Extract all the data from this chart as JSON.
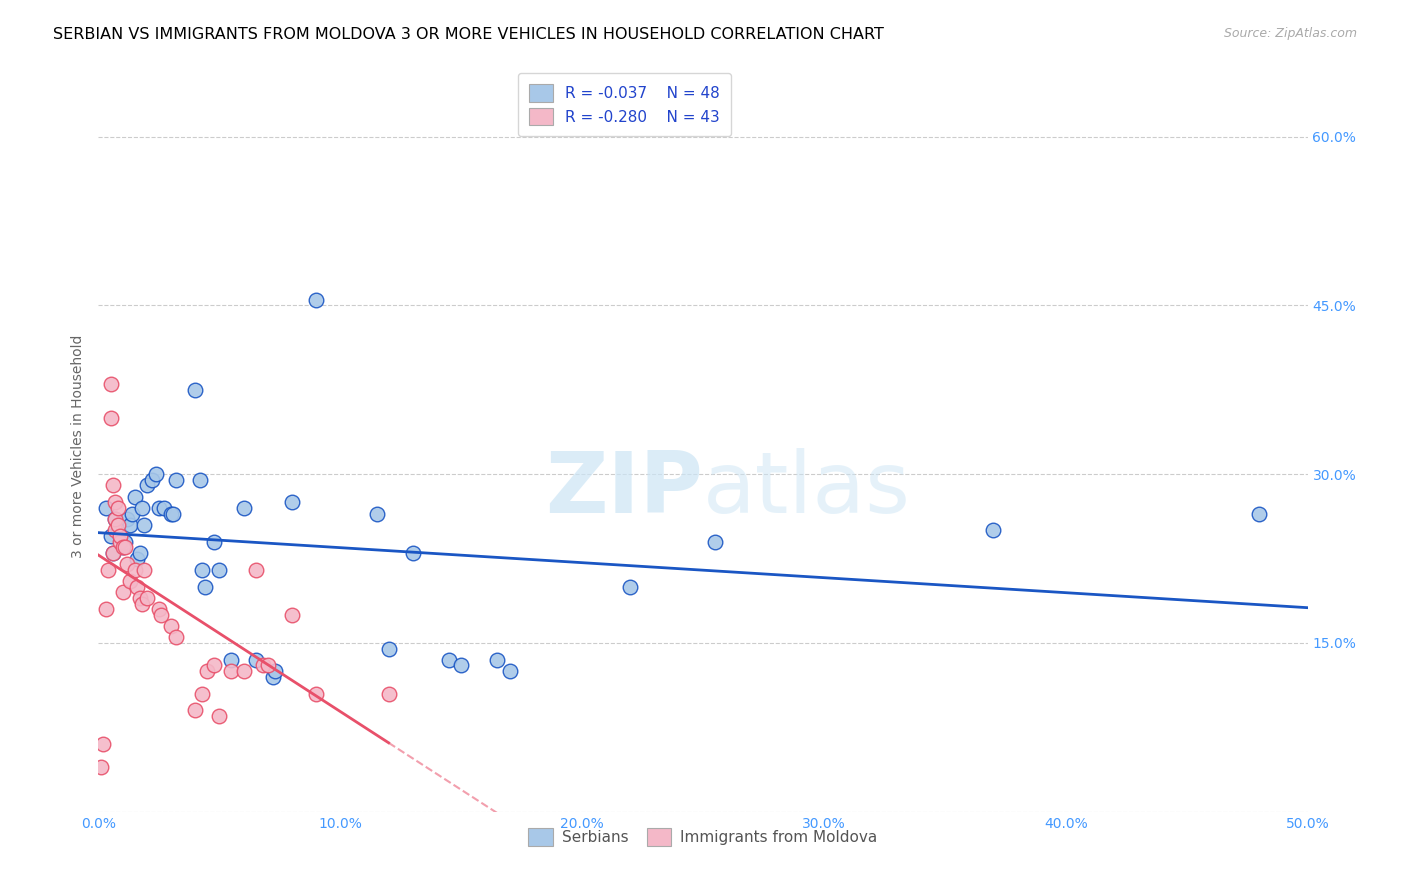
{
  "title": "SERBIAN VS IMMIGRANTS FROM MOLDOVA 3 OR MORE VEHICLES IN HOUSEHOLD CORRELATION CHART",
  "source": "Source: ZipAtlas.com",
  "ylabel": "3 or more Vehicles in Household",
  "xlim": [
    0.0,
    50.0
  ],
  "ylim": [
    0.0,
    65.0
  ],
  "xticks": [
    0.0,
    10.0,
    20.0,
    30.0,
    40.0,
    50.0
  ],
  "xtick_labels": [
    "0.0%",
    "10.0%",
    "20.0%",
    "30.0%",
    "40.0%",
    "50.0%"
  ],
  "yticks": [
    0.0,
    15.0,
    30.0,
    45.0,
    60.0
  ],
  "ytick_labels": [
    "",
    "15.0%",
    "30.0%",
    "45.0%",
    "60.0%"
  ],
  "legend_labels": [
    "Serbians",
    "Immigrants from Moldova"
  ],
  "blue_R": -0.037,
  "blue_N": 48,
  "pink_R": -0.28,
  "pink_N": 43,
  "blue_color": "#a8c8e8",
  "pink_color": "#f4b8c8",
  "blue_line_color": "#1a56c4",
  "pink_line_color": "#e8506a",
  "blue_scatter": [
    [
      0.3,
      27.0
    ],
    [
      0.5,
      24.5
    ],
    [
      0.6,
      23.0
    ],
    [
      0.7,
      26.0
    ],
    [
      0.8,
      25.0
    ],
    [
      0.9,
      24.5
    ],
    [
      1.0,
      23.5
    ],
    [
      1.1,
      24.0
    ],
    [
      1.2,
      26.0
    ],
    [
      1.3,
      25.5
    ],
    [
      1.4,
      26.5
    ],
    [
      1.5,
      28.0
    ],
    [
      1.6,
      22.5
    ],
    [
      1.7,
      23.0
    ],
    [
      1.8,
      27.0
    ],
    [
      1.9,
      25.5
    ],
    [
      2.0,
      29.0
    ],
    [
      2.2,
      29.5
    ],
    [
      2.4,
      30.0
    ],
    [
      2.5,
      27.0
    ],
    [
      2.7,
      27.0
    ],
    [
      3.0,
      26.5
    ],
    [
      3.1,
      26.5
    ],
    [
      3.2,
      29.5
    ],
    [
      4.0,
      37.5
    ],
    [
      4.2,
      29.5
    ],
    [
      4.3,
      21.5
    ],
    [
      4.4,
      20.0
    ],
    [
      4.8,
      24.0
    ],
    [
      5.0,
      21.5
    ],
    [
      5.5,
      13.5
    ],
    [
      6.0,
      27.0
    ],
    [
      6.5,
      13.5
    ],
    [
      7.2,
      12.0
    ],
    [
      7.3,
      12.5
    ],
    [
      8.0,
      27.5
    ],
    [
      9.0,
      45.5
    ],
    [
      11.5,
      26.5
    ],
    [
      12.0,
      14.5
    ],
    [
      13.0,
      23.0
    ],
    [
      14.5,
      13.5
    ],
    [
      15.0,
      13.0
    ],
    [
      16.5,
      13.5
    ],
    [
      17.0,
      12.5
    ],
    [
      22.0,
      20.0
    ],
    [
      25.5,
      24.0
    ],
    [
      37.0,
      25.0
    ],
    [
      48.0,
      26.5
    ]
  ],
  "pink_scatter": [
    [
      0.1,
      4.0
    ],
    [
      0.2,
      6.0
    ],
    [
      0.3,
      18.0
    ],
    [
      0.4,
      21.5
    ],
    [
      0.5,
      35.0
    ],
    [
      0.5,
      38.0
    ],
    [
      0.6,
      23.0
    ],
    [
      0.6,
      29.0
    ],
    [
      0.7,
      25.0
    ],
    [
      0.7,
      26.0
    ],
    [
      0.7,
      27.5
    ],
    [
      0.8,
      25.5
    ],
    [
      0.8,
      27.0
    ],
    [
      0.9,
      24.0
    ],
    [
      0.9,
      24.5
    ],
    [
      1.0,
      23.5
    ],
    [
      1.0,
      19.5
    ],
    [
      1.1,
      23.5
    ],
    [
      1.2,
      22.0
    ],
    [
      1.3,
      20.5
    ],
    [
      1.5,
      21.5
    ],
    [
      1.6,
      20.0
    ],
    [
      1.7,
      19.0
    ],
    [
      1.8,
      18.5
    ],
    [
      1.9,
      21.5
    ],
    [
      2.0,
      19.0
    ],
    [
      2.5,
      18.0
    ],
    [
      2.6,
      17.5
    ],
    [
      3.0,
      16.5
    ],
    [
      3.2,
      15.5
    ],
    [
      4.0,
      9.0
    ],
    [
      4.3,
      10.5
    ],
    [
      4.5,
      12.5
    ],
    [
      4.8,
      13.0
    ],
    [
      5.0,
      8.5
    ],
    [
      5.5,
      12.5
    ],
    [
      6.0,
      12.5
    ],
    [
      6.5,
      21.5
    ],
    [
      6.8,
      13.0
    ],
    [
      7.0,
      13.0
    ],
    [
      8.0,
      17.5
    ],
    [
      9.0,
      10.5
    ],
    [
      12.0,
      10.5
    ]
  ],
  "watermark_zip": "ZIP",
  "watermark_atlas": "atlas",
  "background_color": "#ffffff",
  "grid_color": "#cccccc",
  "title_fontsize": 11.5,
  "axis_fontsize": 10,
  "tick_fontsize": 10,
  "tick_color": "#4499ff"
}
